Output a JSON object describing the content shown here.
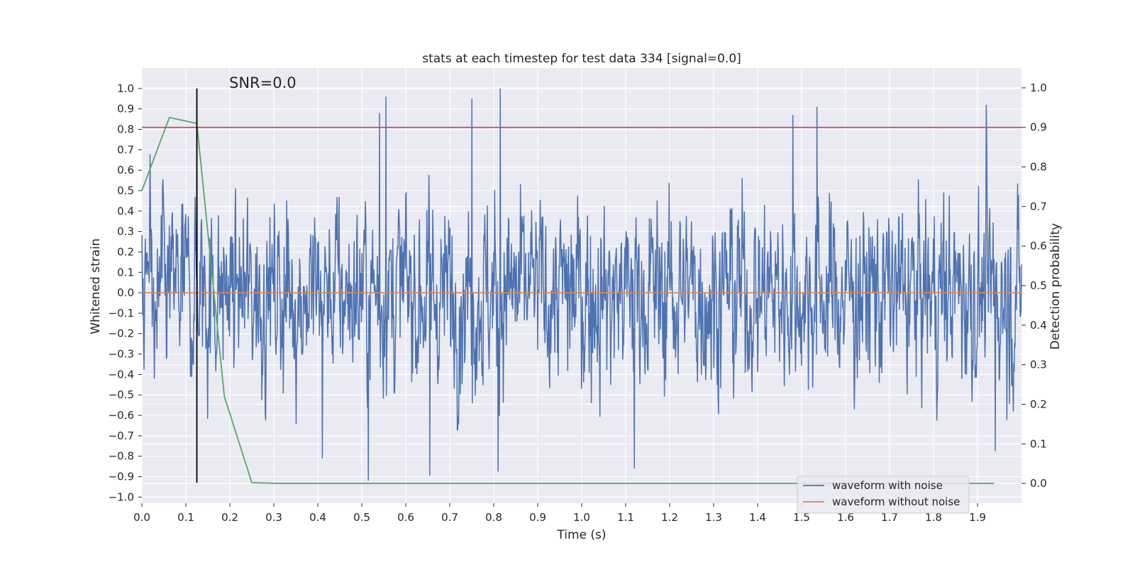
{
  "chart_data": {
    "type": "line",
    "title": "stats at each timestep for test data 334 [signal=0.0]",
    "xlabel": "Time (s)",
    "ylabel": "Whitened strain",
    "y2label": "Detection probability",
    "xlim": [
      0.0,
      2.0
    ],
    "ylim": [
      -1.03,
      1.1
    ],
    "y2lim": [
      -0.05,
      1.05
    ],
    "x_ticks": [
      "0.0",
      "0.1",
      "0.2",
      "0.3",
      "0.4",
      "0.5",
      "0.6",
      "0.7",
      "0.8",
      "0.9",
      "1.0",
      "1.1",
      "1.2",
      "1.3",
      "1.4",
      "1.5",
      "1.6",
      "1.7",
      "1.8",
      "1.9"
    ],
    "y_ticks": [
      "1.0",
      "0.9",
      "0.8",
      "0.7",
      "0.6",
      "0.5",
      "0.4",
      "0.3",
      "0.2",
      "0.1",
      "0.0",
      "−0.1",
      "−0.2",
      "−0.3",
      "−0.4",
      "−0.5",
      "−0.6",
      "−0.7",
      "−0.8",
      "−0.9",
      "−1.0"
    ],
    "y2_ticks": [
      "1.0",
      "0.9",
      "0.8",
      "0.7",
      "0.6",
      "0.5",
      "0.4",
      "0.3",
      "0.2",
      "0.1",
      "0.0"
    ],
    "grid": true,
    "legend_position": "lower-right",
    "annotation": "SNR=0.0",
    "colors": {
      "noisy": "#4c72b0",
      "clean": "#dd8452",
      "probability": "#55a868",
      "threshold": "#c44e52",
      "marker": "#000000",
      "background": "#eaeaf2",
      "grid": "#ffffff"
    },
    "series": [
      {
        "name": "waveform with noise",
        "axis": "left",
        "n_points": 2048,
        "x_range": [
          0.0,
          2.0
        ],
        "approx_range": [
          -0.93,
          1.0
        ],
        "peaks": [
          {
            "x": 0.125,
            "y": 0.905
          },
          {
            "x": 0.54,
            "y": 0.88
          },
          {
            "x": 0.555,
            "y": 0.96
          },
          {
            "x": 0.75,
            "y": 0.95
          },
          {
            "x": 0.815,
            "y": 1.0
          },
          {
            "x": 1.48,
            "y": 0.87
          },
          {
            "x": 1.535,
            "y": 0.91
          },
          {
            "x": 1.92,
            "y": 0.92
          },
          {
            "x": 0.515,
            "y": -0.92
          },
          {
            "x": 0.655,
            "y": -0.895
          },
          {
            "x": 0.81,
            "y": -0.875
          },
          {
            "x": 1.12,
            "y": -0.86
          },
          {
            "x": 0.41,
            "y": -0.81
          },
          {
            "x": 1.94,
            "y": -0.775
          }
        ]
      },
      {
        "name": "waveform without noise",
        "axis": "left",
        "x": [
          0.0,
          2.0
        ],
        "y": [
          0.0,
          0.0
        ]
      },
      {
        "name": "",
        "axis": "right",
        "x": [
          0.0,
          0.0625,
          0.125,
          0.1875,
          0.25,
          0.3125,
          1.9375
        ],
        "y": [
          0.74,
          0.925,
          0.91,
          0.22,
          0.002,
          0.0,
          0.0
        ]
      }
    ],
    "threshold_line": {
      "axis": "right",
      "y": 0.9
    },
    "vertical_marker": {
      "x": 0.125,
      "y_from": -0.93,
      "y_to": 1.0
    }
  }
}
